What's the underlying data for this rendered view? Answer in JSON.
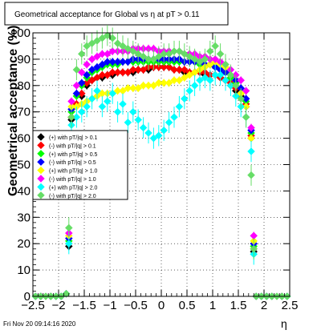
{
  "chart_data": {
    "type": "scatter",
    "title": "Geometrical acceptance for Global vs    η at pT > 0.11",
    "xlabel": "η",
    "ylabel": "Geometrical acceptance (%)",
    "xlim": [
      -2.5,
      2.5
    ],
    "ylim": [
      0,
      100
    ],
    "x_ticks": [
      "−2.5",
      "−2",
      "−1.5",
      "−1",
      "−0.5",
      "0",
      "0.5",
      "1",
      "1.5",
      "2",
      "2.5"
    ],
    "y_ticks": [
      "0",
      "10",
      "20",
      "30",
      "40",
      "50",
      "60",
      "70",
      "80",
      "90",
      "100"
    ],
    "grid": true,
    "legend_position": "left-middle",
    "x": [
      -2.45,
      -2.35,
      -2.25,
      -2.15,
      -2.05,
      -1.95,
      -1.85,
      -1.8,
      -1.75,
      -1.65,
      -1.55,
      -1.45,
      -1.35,
      -1.25,
      -1.15,
      -1.05,
      -0.95,
      -0.85,
      -0.75,
      -0.65,
      -0.55,
      -0.45,
      -0.35,
      -0.25,
      -0.15,
      -0.05,
      0.05,
      0.15,
      0.25,
      0.35,
      0.45,
      0.55,
      0.65,
      0.75,
      0.85,
      0.95,
      1.05,
      1.15,
      1.25,
      1.35,
      1.45,
      1.55,
      1.65,
      1.75,
      1.8,
      1.85,
      1.95,
      2.05,
      2.15,
      2.25,
      2.35,
      2.45
    ],
    "series": [
      {
        "name": "(+) with pT/|q| > 0.1",
        "color": "#000000",
        "values": [
          0,
          0,
          0,
          0,
          0,
          0,
          1,
          19,
          67,
          72,
          76,
          80,
          82,
          83,
          83,
          84,
          84,
          85,
          85,
          85,
          85,
          86,
          86,
          86,
          87,
          87,
          87,
          87,
          86,
          86,
          85,
          85,
          85,
          85,
          84,
          84,
          84,
          83,
          82,
          80,
          78,
          76,
          72,
          60,
          17,
          0,
          0,
          0,
          0,
          0,
          0,
          0
        ]
      },
      {
        "name": "(-) with pT/|q| > 0.1",
        "color": "#ff0000",
        "values": [
          0,
          0,
          0,
          0,
          0,
          0,
          1,
          20,
          68,
          73,
          77,
          81,
          82,
          83,
          84,
          84,
          85,
          85,
          85,
          85,
          86,
          86,
          86,
          87,
          87,
          87,
          87,
          87,
          86,
          86,
          86,
          85,
          85,
          85,
          85,
          84,
          84,
          83,
          82,
          81,
          79,
          77,
          73,
          61,
          18,
          0,
          0,
          0,
          0,
          0,
          0,
          0
        ]
      },
      {
        "name": "(+) with pT/|q| > 0.5",
        "color": "#00ff00",
        "values": [
          0,
          0,
          0,
          0,
          0,
          0,
          1,
          21,
          70,
          76,
          80,
          83,
          85,
          86,
          87,
          88,
          88,
          88,
          89,
          89,
          89,
          89,
          89,
          89,
          89,
          89,
          89,
          89,
          89,
          89,
          89,
          89,
          89,
          88,
          88,
          88,
          87,
          86,
          85,
          83,
          81,
          79,
          74,
          62,
          19,
          0,
          0,
          0,
          0,
          0,
          0,
          0
        ]
      },
      {
        "name": "(-) with pT/|q| > 0.5",
        "color": "#0000ff",
        "values": [
          0,
          0,
          0,
          0,
          0,
          0,
          1,
          22,
          71,
          77,
          81,
          84,
          86,
          87,
          88,
          89,
          89,
          89,
          89,
          89,
          90,
          90,
          90,
          90,
          90,
          90,
          90,
          90,
          90,
          90,
          89,
          89,
          89,
          89,
          88,
          88,
          87,
          86,
          85,
          84,
          82,
          79,
          75,
          63,
          20,
          0,
          0,
          0,
          0,
          0,
          0,
          0
        ]
      },
      {
        "name": "(+) with pT/|q| > 1.0",
        "color": "#ffff00",
        "values": [
          0,
          0,
          0,
          0,
          0,
          0,
          1,
          23,
          72,
          72,
          73,
          74,
          75,
          76,
          77,
          77,
          77,
          78,
          78,
          79,
          79,
          79,
          80,
          80,
          80,
          81,
          81,
          81,
          82,
          82,
          83,
          84,
          85,
          86,
          87,
          88,
          89,
          88,
          87,
          84,
          80,
          77,
          72,
          60,
          21,
          0,
          0,
          0,
          0,
          0,
          0,
          0
        ]
      },
      {
        "name": "(-) with pT/|q| > 1.0",
        "color": "#ff00ff",
        "values": [
          0,
          0,
          0,
          0,
          0,
          0,
          1,
          24,
          74,
          80,
          85,
          88,
          90,
          91,
          92,
          92,
          93,
          93,
          93,
          93,
          94,
          94,
          94,
          94,
          94,
          93,
          93,
          93,
          93,
          93,
          92,
          92,
          92,
          91,
          91,
          90,
          90,
          89,
          88,
          86,
          84,
          82,
          78,
          64,
          23,
          0,
          0,
          0,
          0,
          0,
          0,
          0
        ]
      },
      {
        "name": "(+) with pT/|q| > 2.0",
        "color": "#00ffff",
        "values": [
          0,
          0,
          0,
          0,
          0,
          0,
          1,
          20,
          65,
          68,
          70,
          72,
          75,
          78,
          72,
          74,
          77,
          70,
          73,
          66,
          70,
          67,
          64,
          62,
          60,
          61,
          63,
          66,
          68,
          72,
          75,
          78,
          80,
          82,
          83,
          82,
          84,
          84,
          82,
          80,
          76,
          72,
          68,
          55,
          16,
          0,
          0,
          0,
          0,
          0,
          0,
          0
        ]
      },
      {
        "name": "(-) with pT/|q| > 2.0",
        "color": "#66dd66",
        "values": [
          0,
          0,
          0,
          0,
          0,
          0,
          1,
          26,
          68,
          86,
          92,
          95,
          96,
          97,
          98,
          99,
          98,
          96,
          95,
          94,
          93,
          92,
          91,
          90,
          90,
          91,
          92,
          92,
          93,
          93,
          92,
          91,
          90,
          89,
          90,
          93,
          95,
          92,
          88,
          84,
          80,
          75,
          68,
          46,
          18,
          0,
          0,
          0,
          0,
          0,
          0,
          0
        ]
      }
    ]
  },
  "footer": {
    "timestamp": "Fri Nov 20 09:14:16 2020"
  }
}
